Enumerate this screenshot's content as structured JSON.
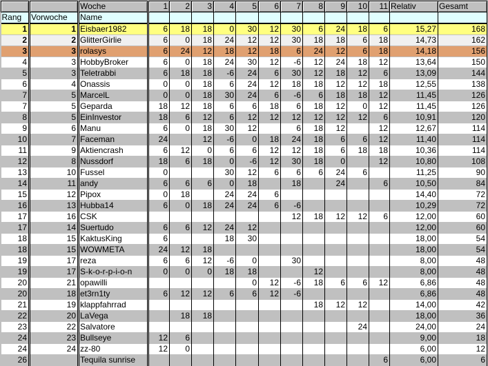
{
  "header": {
    "woche_label": "Woche",
    "weeks": [
      "1",
      "2",
      "3",
      "4",
      "5",
      "6",
      "7",
      "8",
      "9",
      "10",
      "11"
    ],
    "relativ": "Relativ",
    "gesamt": "Gesamt",
    "rang": "Rang",
    "vorwoche": "Vorwoche",
    "name": "Name"
  },
  "colors": {
    "first": "#ffff80",
    "second": "#f0f0f0",
    "third": "#e0a070",
    "alt": "#c0c0c0",
    "subheader": "#e0ffff"
  },
  "rows": [
    {
      "rang": "1",
      "vorwoche": "1",
      "name": "Eisbaer1982",
      "weeks": [
        "6",
        "18",
        "18",
        "0",
        "30",
        "12",
        "30",
        "6",
        "24",
        "18",
        "6"
      ],
      "relativ": "15,27",
      "gesamt": "168"
    },
    {
      "rang": "2",
      "vorwoche": "2",
      "name": "GlitterGirlie",
      "weeks": [
        "6",
        "0",
        "18",
        "24",
        "12",
        "12",
        "30",
        "18",
        "18",
        "6",
        "18"
      ],
      "relativ": "14,73",
      "gesamt": "162"
    },
    {
      "rang": "3",
      "vorwoche": "3",
      "name": "rolasys",
      "weeks": [
        "6",
        "24",
        "12",
        "18",
        "12",
        "18",
        "6",
        "24",
        "12",
        "6",
        "18"
      ],
      "relativ": "14,18",
      "gesamt": "156"
    },
    {
      "rang": "4",
      "vorwoche": "3",
      "name": "HobbyBroker",
      "weeks": [
        "6",
        "0",
        "18",
        "24",
        "30",
        "12",
        "-6",
        "12",
        "24",
        "18",
        "12"
      ],
      "relativ": "13,64",
      "gesamt": "150"
    },
    {
      "rang": "5",
      "vorwoche": "3",
      "name": "Teletrabbi",
      "weeks": [
        "6",
        "18",
        "18",
        "-6",
        "24",
        "6",
        "30",
        "12",
        "18",
        "12",
        "6"
      ],
      "relativ": "13,09",
      "gesamt": "144"
    },
    {
      "rang": "6",
      "vorwoche": "4",
      "name": "Onassis",
      "weeks": [
        "0",
        "0",
        "18",
        "6",
        "24",
        "12",
        "18",
        "18",
        "12",
        "12",
        "18"
      ],
      "relativ": "12,55",
      "gesamt": "138"
    },
    {
      "rang": "7",
      "vorwoche": "5",
      "name": "MarcelL",
      "weeks": [
        "0",
        "0",
        "18",
        "30",
        "24",
        "6",
        "-6",
        "6",
        "18",
        "18",
        "12"
      ],
      "relativ": "11,45",
      "gesamt": "126"
    },
    {
      "rang": "7",
      "vorwoche": "5",
      "name": "Geparda",
      "weeks": [
        "18",
        "12",
        "18",
        "6",
        "6",
        "18",
        "6",
        "18",
        "12",
        "0",
        "12"
      ],
      "relativ": "11,45",
      "gesamt": "126"
    },
    {
      "rang": "8",
      "vorwoche": "5",
      "name": "EinInvestor",
      "weeks": [
        "18",
        "6",
        "12",
        "6",
        "12",
        "12",
        "12",
        "12",
        "12",
        "12",
        "6"
      ],
      "relativ": "10,91",
      "gesamt": "120"
    },
    {
      "rang": "9",
      "vorwoche": "6",
      "name": "Manu",
      "weeks": [
        "6",
        "0",
        "18",
        "30",
        "12",
        "",
        "6",
        "18",
        "12",
        "",
        "12"
      ],
      "relativ": "12,67",
      "gesamt": "114"
    },
    {
      "rang": "10",
      "vorwoche": "7",
      "name": "Faceman",
      "weeks": [
        "24",
        "",
        "12",
        "-6",
        "0",
        "18",
        "24",
        "18",
        "6",
        "6",
        "12"
      ],
      "relativ": "11,40",
      "gesamt": "114"
    },
    {
      "rang": "11",
      "vorwoche": "9",
      "name": "Aktiencrash",
      "weeks": [
        "6",
        "12",
        "0",
        "6",
        "6",
        "12",
        "12",
        "18",
        "6",
        "18",
        "18"
      ],
      "relativ": "10,36",
      "gesamt": "114"
    },
    {
      "rang": "12",
      "vorwoche": "8",
      "name": "Nussdorf",
      "weeks": [
        "18",
        "6",
        "18",
        "0",
        "-6",
        "12",
        "30",
        "18",
        "0",
        "",
        "12"
      ],
      "relativ": "10,80",
      "gesamt": "108"
    },
    {
      "rang": "13",
      "vorwoche": "10",
      "name": "Fussel",
      "weeks": [
        "0",
        "",
        "",
        "30",
        "12",
        "6",
        "6",
        "6",
        "24",
        "6",
        ""
      ],
      "relativ": "11,25",
      "gesamt": "90"
    },
    {
      "rang": "14",
      "vorwoche": "11",
      "name": "andy",
      "weeks": [
        "6",
        "6",
        "6",
        "0",
        "18",
        "",
        "18",
        "",
        "24",
        "",
        "6"
      ],
      "relativ": "10,50",
      "gesamt": "84"
    },
    {
      "rang": "15",
      "vorwoche": "12",
      "name": "Pipox",
      "weeks": [
        "0",
        "18",
        "",
        "24",
        "24",
        "6",
        "",
        "",
        "",
        "",
        ""
      ],
      "relativ": "14,40",
      "gesamt": "72"
    },
    {
      "rang": "16",
      "vorwoche": "13",
      "name": "Hubba14",
      "weeks": [
        "6",
        "0",
        "18",
        "24",
        "24",
        "6",
        "-6",
        "",
        "",
        "",
        ""
      ],
      "relativ": "10,29",
      "gesamt": "72"
    },
    {
      "rang": "17",
      "vorwoche": "16",
      "name": "CSK",
      "weeks": [
        "",
        "",
        "",
        "",
        "",
        "",
        "12",
        "18",
        "12",
        "12",
        "6"
      ],
      "relativ": "12,00",
      "gesamt": "60"
    },
    {
      "rang": "17",
      "vorwoche": "14",
      "name": "Suertudo",
      "weeks": [
        "6",
        "6",
        "12",
        "24",
        "12",
        "",
        "",
        "",
        "",
        "",
        ""
      ],
      "relativ": "12,00",
      "gesamt": "60"
    },
    {
      "rang": "18",
      "vorwoche": "15",
      "name": "KaktusKing",
      "weeks": [
        "6",
        "",
        "",
        "18",
        "30",
        "",
        "",
        "",
        "",
        "",
        ""
      ],
      "relativ": "18,00",
      "gesamt": "54"
    },
    {
      "rang": "18",
      "vorwoche": "15",
      "name": "WOWMETA",
      "weeks": [
        "24",
        "12",
        "18",
        "",
        "",
        "",
        "",
        "",
        "",
        "",
        ""
      ],
      "relativ": "18,00",
      "gesamt": "54"
    },
    {
      "rang": "19",
      "vorwoche": "17",
      "name": "reza",
      "weeks": [
        "6",
        "6",
        "12",
        "-6",
        "0",
        "",
        "30",
        "",
        "",
        "",
        ""
      ],
      "relativ": "8,00",
      "gesamt": "48"
    },
    {
      "rang": "19",
      "vorwoche": "17",
      "name": "S-k-o-r-p-i-o-n",
      "weeks": [
        "0",
        "0",
        "0",
        "18",
        "18",
        "",
        "",
        "12",
        "",
        "",
        ""
      ],
      "relativ": "8,00",
      "gesamt": "48"
    },
    {
      "rang": "20",
      "vorwoche": "21",
      "name": "opawilli",
      "weeks": [
        "",
        "",
        "",
        "",
        "0",
        "12",
        "-6",
        "18",
        "6",
        "6",
        "12"
      ],
      "relativ": "6,86",
      "gesamt": "48"
    },
    {
      "rang": "20",
      "vorwoche": "18",
      "name": "et3rn1ty",
      "weeks": [
        "6",
        "12",
        "12",
        "6",
        "6",
        "12",
        "-6",
        "",
        "",
        "",
        ""
      ],
      "relativ": "6,86",
      "gesamt": "48"
    },
    {
      "rang": "21",
      "vorwoche": "19",
      "name": "klappfahrrad",
      "weeks": [
        "",
        "",
        "",
        "",
        "",
        "",
        "",
        "18",
        "12",
        "12",
        ""
      ],
      "relativ": "14,00",
      "gesamt": "42"
    },
    {
      "rang": "22",
      "vorwoche": "20",
      "name": "LaVega",
      "weeks": [
        "",
        "18",
        "18",
        "",
        "",
        "",
        "",
        "",
        "",
        "",
        ""
      ],
      "relativ": "18,00",
      "gesamt": "36"
    },
    {
      "rang": "23",
      "vorwoche": "22",
      "name": "Salvatore",
      "weeks": [
        "",
        "",
        "",
        "",
        "",
        "",
        "",
        "",
        "",
        "24",
        ""
      ],
      "relativ": "24,00",
      "gesamt": "24"
    },
    {
      "rang": "24",
      "vorwoche": "23",
      "name": "Bullseye",
      "weeks": [
        "12",
        "6",
        "",
        "",
        "",
        "",
        "",
        "",
        "",
        "",
        ""
      ],
      "relativ": "9,00",
      "gesamt": "18"
    },
    {
      "rang": "24",
      "vorwoche": "24",
      "name": "zz-80",
      "weeks": [
        "12",
        "0",
        "",
        "",
        "",
        "",
        "",
        "",
        "",
        "",
        ""
      ],
      "relativ": "6,00",
      "gesamt": "12"
    },
    {
      "rang": "26",
      "vorwoche": "",
      "name": "Tequila sunrise",
      "weeks": [
        "",
        "",
        "",
        "",
        "",
        "",
        "",
        "",
        "",
        "",
        "6"
      ],
      "relativ": "6,00",
      "gesamt": "6"
    }
  ]
}
